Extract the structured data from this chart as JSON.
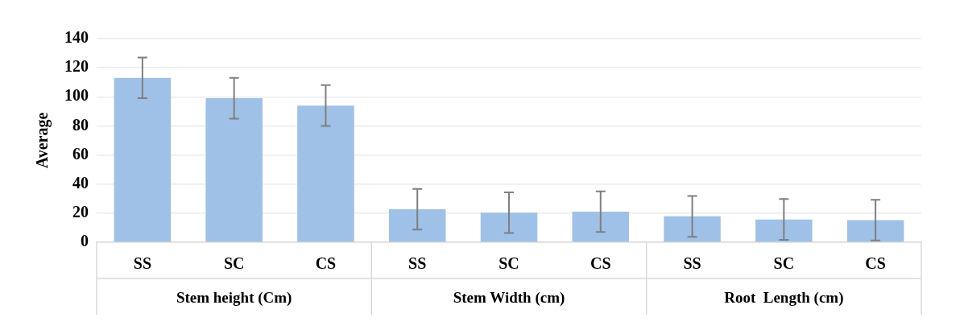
{
  "chart_data": {
    "type": "bar",
    "ylabel": "Average",
    "categories": [
      "SS",
      "SC",
      "CS",
      "SS",
      "SC",
      "CS",
      "SS",
      "SC",
      "CS"
    ],
    "values": [
      113,
      99,
      94,
      22.7,
      20.3,
      21,
      17.8,
      15.7,
      15.2
    ],
    "errors": [
      14,
      14,
      14,
      14,
      14,
      14,
      14,
      14,
      14
    ],
    "color": "#9fc1e7",
    "ylim": [
      0,
      140
    ],
    "yticks": [
      0,
      20,
      40,
      60,
      80,
      100,
      120,
      140
    ],
    "grid": "y",
    "legend": false,
    "annotations": [
      "Stem height (Cm)",
      "Stem Width (cm)",
      "Root  Length (cm)"
    ]
  }
}
